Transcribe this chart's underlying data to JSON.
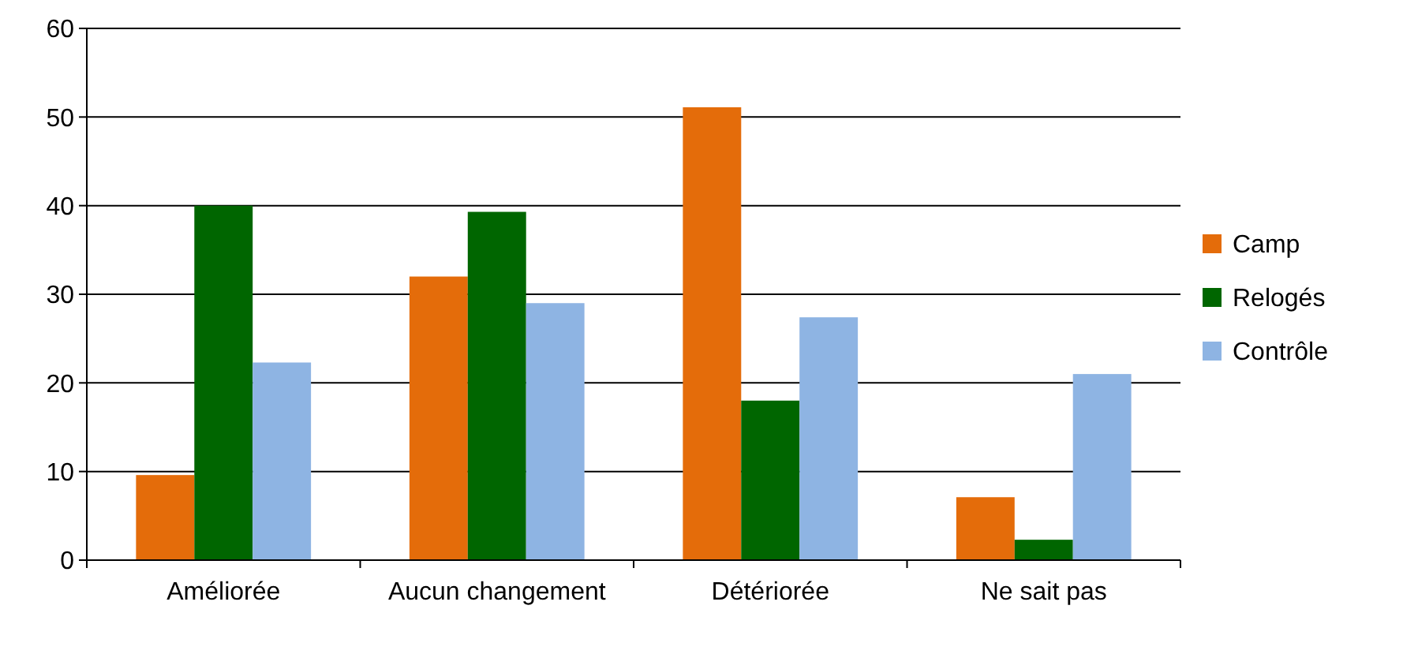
{
  "chart_data": {
    "type": "bar",
    "categories": [
      "Améliorée",
      "Aucun changement",
      "Détériorée",
      "Ne sait pas"
    ],
    "series": [
      {
        "name": "Camp",
        "color": "#e46c0a",
        "values": [
          9.6,
          32,
          51.1,
          7.1
        ]
      },
      {
        "name": "Relogés",
        "color": "#006600",
        "values": [
          40,
          39.3,
          18,
          2.3
        ]
      },
      {
        "name": "Contrôle",
        "color": "#8eb4e3",
        "values": [
          22.3,
          29,
          27.4,
          21
        ]
      }
    ],
    "ylim": [
      0,
      60
    ],
    "yticks": [
      0,
      10,
      20,
      30,
      40,
      50,
      60
    ],
    "grid": "y",
    "legend": "right"
  }
}
